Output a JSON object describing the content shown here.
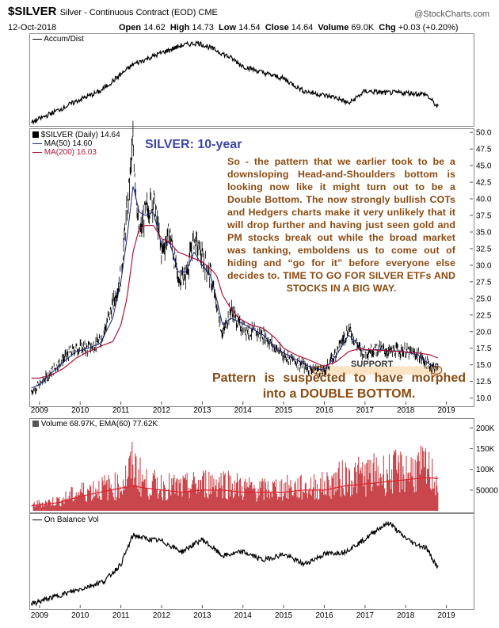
{
  "header": {
    "symbol": "$SILVER",
    "subtitle": "Silver - Continuous Contract (EOD) CME",
    "logo": "@StockCharts.com",
    "date": "12-Oct-2018",
    "ohlc": {
      "open_label": "Open",
      "open": "14.62",
      "high_label": "High",
      "high": "14.73",
      "low_label": "Low",
      "low": "14.54",
      "close_label": "Close",
      "close": "14.64",
      "volume_label": "Volume",
      "volume": "69.0K",
      "chg_label": "Chg",
      "chg": "+0.03 (+0.20%)"
    }
  },
  "panels": {
    "accum": {
      "legend": "Accum/Dist"
    },
    "price": {
      "legend": "$SILVER (Daily) 14.64",
      "ma50": "MA(50) 14.60",
      "ma200": "MA(200) 16.03"
    },
    "volume": {
      "legend": "Volume 68.97K, EMA(60) 77.62K"
    },
    "obv": {
      "legend": "On Balance Vol"
    }
  },
  "annotations": {
    "title": "SILVER: 10-year",
    "body": "So - the pattern that we earlier took to be a downsloping Head-and-Shoulders bottom is looking now like it might turn out to be a Double Bottom. The now strongly bullish COTs and Hedgers charts make it very unlikely that it will drop further and having just seen gold and PM stocks break out while the broad market was tanking, emboldens us to come out of hiding and “go for it” before everyone else decides to. TIME TO GO FOR SILVER ETFs AND STOCKS IN A BIG WAY.",
    "bottom": "Pattern is suspected to have morphed into a DOUBLE BOTTOM.",
    "support": "SUPPORT"
  },
  "colors": {
    "price": "#000000",
    "ma50": "#1a237e",
    "ma200": "#b0163a",
    "volume": "#c0272d",
    "support": "#fbe3c4",
    "annotation": "#8a4a10",
    "title": "#3b47a6"
  },
  "chart_data": [
    {
      "type": "line",
      "title": "Accum/Dist",
      "x": [
        2008.8,
        2009.5,
        2010.0,
        2010.5,
        2011.0,
        2011.3,
        2011.6,
        2012.0,
        2012.5,
        2012.9,
        2013.3,
        2013.7,
        2014.0,
        2014.5,
        2015.0,
        2015.5,
        2016.0,
        2016.3,
        2016.6,
        2017.0,
        2017.5,
        2018.0,
        2018.5,
        2018.8
      ],
      "series": [
        {
          "values": [
            0.02,
            0.18,
            0.3,
            0.4,
            0.6,
            0.72,
            0.78,
            0.86,
            0.95,
            0.98,
            0.9,
            0.8,
            0.7,
            0.62,
            0.55,
            0.4,
            0.35,
            0.32,
            0.25,
            0.4,
            0.38,
            0.38,
            0.36,
            0.2
          ]
        }
      ]
    },
    {
      "type": "line",
      "title": "SILVER: 10-year",
      "x_ticks": [
        "2009",
        "2010",
        "2011",
        "2012",
        "2013",
        "2014",
        "2015",
        "2016",
        "2017",
        "2018",
        "2019"
      ],
      "y_ticks": [
        10.0,
        12.5,
        15.0,
        17.5,
        20.0,
        22.5,
        25.0,
        27.5,
        30.0,
        32.5,
        35.0,
        37.5,
        40.0,
        42.5,
        45.0,
        47.5,
        50.0
      ],
      "ylim": [
        9,
        50.5
      ],
      "x": [
        2008.8,
        2009.0,
        2009.3,
        2009.6,
        2009.9,
        2010.2,
        2010.5,
        2010.8,
        2011.0,
        2011.15,
        2011.3,
        2011.45,
        2011.6,
        2011.8,
        2012.0,
        2012.2,
        2012.4,
        2012.6,
        2012.8,
        2013.0,
        2013.2,
        2013.35,
        2013.5,
        2013.7,
        2013.9,
        2014.2,
        2014.5,
        2014.8,
        2015.0,
        2015.3,
        2015.6,
        2015.9,
        2016.0,
        2016.3,
        2016.6,
        2016.9,
        2017.0,
        2017.3,
        2017.6,
        2017.9,
        2018.0,
        2018.3,
        2018.6,
        2018.79
      ],
      "series": [
        {
          "name": "$SILVER",
          "values": [
            11.0,
            12.0,
            14.0,
            16.0,
            17.5,
            17.5,
            18.5,
            24.0,
            28.5,
            38.0,
            48.5,
            34.0,
            38.0,
            40.0,
            32.0,
            35.0,
            28.0,
            28.5,
            34.0,
            31.0,
            28.5,
            24.0,
            19.5,
            23.5,
            21.0,
            20.0,
            19.5,
            17.5,
            16.5,
            15.5,
            14.5,
            14.2,
            14.0,
            17.0,
            20.5,
            17.0,
            17.0,
            17.5,
            17.0,
            17.2,
            17.0,
            16.5,
            14.8,
            14.64
          ]
        },
        {
          "name": "MA(50) 14.60",
          "values": [
            11.5,
            12.0,
            13.8,
            15.5,
            17.0,
            17.5,
            18.3,
            22.0,
            27.5,
            34.0,
            42.0,
            38.0,
            37.5,
            38.0,
            33.0,
            33.5,
            29.0,
            29.0,
            32.0,
            30.0,
            28.5,
            25.0,
            21.0,
            22.0,
            21.5,
            20.5,
            19.5,
            17.5,
            16.8,
            15.8,
            14.8,
            14.3,
            14.3,
            16.5,
            19.5,
            17.5,
            17.2,
            17.3,
            17.1,
            17.1,
            16.9,
            16.5,
            15.0,
            14.6
          ]
        },
        {
          "name": "MA(200) 16.03",
          "values": [
            13.0,
            13.0,
            13.5,
            14.5,
            16.0,
            17.0,
            17.8,
            18.5,
            21.0,
            25.0,
            32.0,
            35.5,
            36.0,
            36.0,
            34.0,
            33.5,
            32.0,
            31.5,
            31.0,
            30.5,
            29.5,
            28.5,
            25.5,
            23.5,
            22.0,
            21.0,
            20.5,
            19.0,
            17.5,
            16.5,
            15.8,
            15.0,
            14.8,
            15.5,
            17.0,
            17.5,
            17.3,
            17.2,
            17.1,
            17.0,
            16.9,
            16.8,
            16.5,
            16.03
          ]
        }
      ],
      "support_band": [
        13.5,
        14.8
      ]
    },
    {
      "type": "bar",
      "title": "Volume 68.97K, EMA(60) 77.62K",
      "y_ticks": [
        "50000",
        "100K",
        "150K",
        "200K"
      ],
      "x": [
        2008.8,
        2009.5,
        2010.0,
        2010.5,
        2011.0,
        2011.3,
        2011.6,
        2012.0,
        2012.5,
        2013.0,
        2013.5,
        2014.0,
        2014.5,
        2015.0,
        2015.5,
        2016.0,
        2016.5,
        2017.0,
        2017.5,
        2018.0,
        2018.5,
        2018.8
      ],
      "series": [
        {
          "name": "Volume",
          "values": [
            15000,
            25000,
            45000,
            55000,
            60000,
            110000,
            65000,
            60000,
            55000,
            65000,
            70000,
            55000,
            50000,
            55000,
            55000,
            60000,
            80000,
            85000,
            90000,
            95000,
            100000,
            69000
          ]
        },
        {
          "name": "EMA(60)",
          "values": [
            12000,
            20000,
            35000,
            45000,
            55000,
            60000,
            55000,
            50000,
            45000,
            50000,
            50000,
            45000,
            45000,
            45000,
            50000,
            50000,
            60000,
            65000,
            70000,
            75000,
            80000,
            77620
          ]
        }
      ]
    },
    {
      "type": "line",
      "title": "On Balance Vol",
      "x_ticks": [
        "2009",
        "2010",
        "2011",
        "2012",
        "2013",
        "2014",
        "2015",
        "2016",
        "2017",
        "2018",
        "2019"
      ],
      "x": [
        2008.8,
        2009.3,
        2010.0,
        2010.6,
        2011.0,
        2011.3,
        2011.7,
        2012.0,
        2012.5,
        2013.0,
        2013.5,
        2014.0,
        2014.5,
        2015.0,
        2015.5,
        2016.0,
        2016.5,
        2017.0,
        2017.3,
        2017.6,
        2017.9,
        2018.2,
        2018.5,
        2018.8
      ],
      "series": [
        {
          "values": [
            0.02,
            0.1,
            0.2,
            0.3,
            0.5,
            0.85,
            0.8,
            0.78,
            0.65,
            0.8,
            0.6,
            0.65,
            0.55,
            0.62,
            0.5,
            0.62,
            0.65,
            0.8,
            0.92,
            1.0,
            0.85,
            0.75,
            0.7,
            0.45
          ]
        }
      ]
    }
  ]
}
